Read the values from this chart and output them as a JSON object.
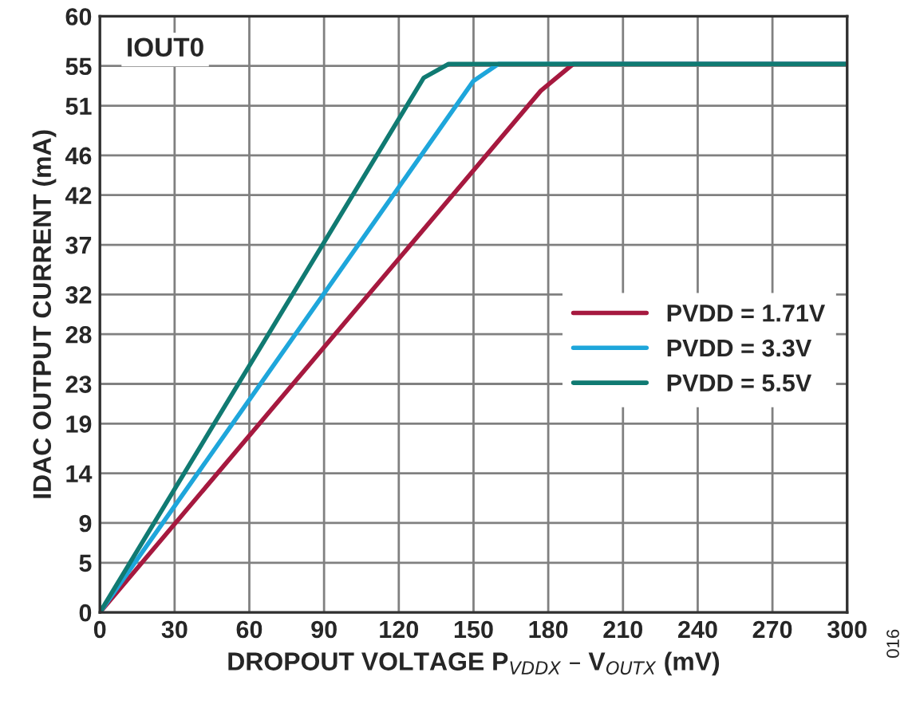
{
  "chart_data": {
    "type": "line",
    "xlabel": "DROPOUT VOLTAGE P$_{VDDX}$ – V$_{OUTX}$ (mV)",
    "ylabel": "IDAC OUTPUT CURRENT (mA)",
    "annotations": [
      "IOUT0",
      "016"
    ],
    "xlim": [
      0,
      300
    ],
    "xticks": [
      0,
      30,
      60,
      90,
      120,
      150,
      180,
      210,
      240,
      270,
      300
    ],
    "ylim": [
      0,
      60
    ],
    "yticks": [
      0,
      5,
      9,
      14,
      19,
      23,
      28,
      32,
      37,
      42,
      46,
      51,
      55,
      60
    ],
    "grid": true,
    "legend": "right",
    "line_style": "solid",
    "marker": "none",
    "series": [
      {
        "name": "PVDD = 1.71V",
        "color": "#a6193f",
        "x": [
          0,
          177,
          190,
          300
        ],
        "values": [
          0,
          52.5,
          55.2,
          55.2
        ]
      },
      {
        "name": "PVDD = 3.3V",
        "color": "#1ea6db",
        "x": [
          0,
          150,
          160,
          300
        ],
        "values": [
          0,
          53.5,
          55.2,
          55.2
        ]
      },
      {
        "name": "PVDD = 5.5V",
        "color": "#107a72",
        "x": [
          0,
          130,
          140,
          300
        ],
        "values": [
          0,
          53.8,
          55.2,
          55.2
        ]
      }
    ]
  }
}
